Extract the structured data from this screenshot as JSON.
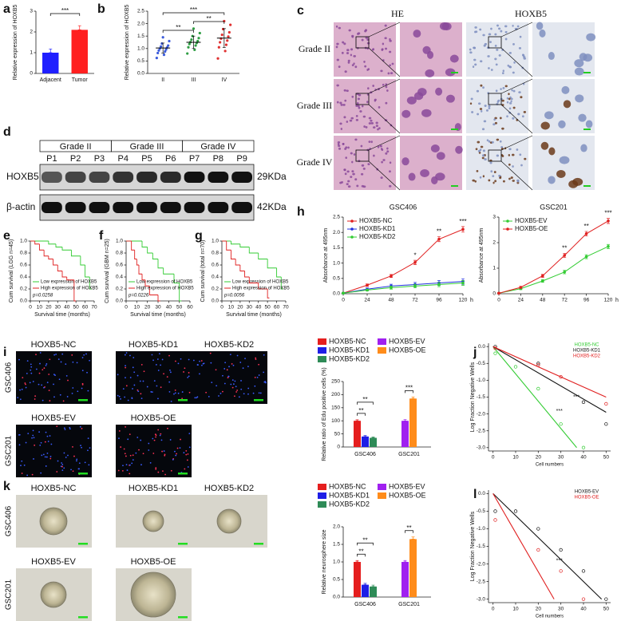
{
  "panel_letters": [
    "a",
    "b",
    "c",
    "d",
    "e",
    "f",
    "g",
    "h",
    "i",
    "j",
    "k",
    "l"
  ],
  "histology": {
    "columns": [
      "HE",
      "HOXB5"
    ],
    "rows": [
      "Grade II",
      "Grade III",
      "Grade IV"
    ]
  },
  "western": {
    "groups": [
      "Grade II",
      "Grade III",
      "Grade IV"
    ],
    "samples": [
      "P1",
      "P2",
      "P3",
      "P4",
      "P5",
      "P6",
      "P7",
      "P8",
      "P9"
    ],
    "bands": [
      {
        "name": "HOXB5",
        "size": "29KDa"
      },
      {
        "name": "β-actin",
        "size": "42KDa"
      }
    ]
  },
  "edu_images": {
    "labels": [
      "HOXB5-NC",
      "HOXB5-KD1",
      "HOXB5-KD2",
      "HOXB5-EV",
      "HOXB5-OE"
    ],
    "rows": [
      "GSC406",
      "GSC201"
    ]
  },
  "sphere_images": {
    "labels": [
      "HOXB5-NC",
      "HOXB5-KD1",
      "HOXB5-KD2",
      "HOXB5-EV",
      "HOXB5-OE"
    ],
    "rows": [
      "GSC406",
      "GSC201"
    ]
  },
  "chart_data": [
    {
      "type": "bar",
      "ylabel": "Relative expression of HOXB5",
      "categories": [
        "Adjacent",
        "Tumor"
      ],
      "values": [
        1.0,
        2.1
      ],
      "errors": [
        0.18,
        0.2
      ],
      "colors": [
        "#1f1fff",
        "#ff1f1f"
      ],
      "ylim": [
        0,
        3
      ],
      "yticks": [
        0,
        1,
        2,
        3
      ],
      "annotations": [
        "***"
      ]
    },
    {
      "type": "dot",
      "ylabel": "Relative expression of HOXB5",
      "categories": [
        "II",
        "III",
        "IV"
      ],
      "points": [
        [
          0.62,
          0.75,
          0.82,
          0.88,
          0.92,
          0.96,
          1.0,
          1.04,
          1.08,
          1.12,
          1.2,
          1.3,
          1.45
        ],
        [
          0.8,
          0.95,
          1.05,
          1.12,
          1.18,
          1.22,
          1.26,
          1.3,
          1.36,
          1.42,
          1.5,
          1.62,
          1.8
        ],
        [
          0.6,
          0.9,
          1.05,
          1.15,
          1.25,
          1.32,
          1.4,
          1.48,
          1.55,
          1.65,
          1.78,
          1.95,
          2.1
        ]
      ],
      "means": [
        1.02,
        1.25,
        1.42
      ],
      "sds": [
        0.2,
        0.25,
        0.38
      ],
      "colors": [
        "#3b5bdb",
        "#2f9e44",
        "#e03131"
      ],
      "ylim": [
        0,
        2.5
      ],
      "yticks": [
        {
          "value": 0,
          "label": "0.0"
        },
        0.5,
        {
          "value": 1,
          "label": "1.0"
        },
        1.5,
        {
          "value": 2,
          "label": "2.0"
        },
        2.5
      ],
      "annotations": [
        "**",
        "***",
        "**"
      ]
    },
    {
      "type": "km",
      "ylabel": "Cum survival (LGG n=45)",
      "xlabel": "Survival time (months)",
      "xlim": [
        0,
        70
      ],
      "xticks": [
        0,
        10,
        20,
        30,
        40,
        50,
        60,
        70
      ],
      "ylim": [
        0,
        1
      ],
      "yticks": [
        {
          "value": 0,
          "label": "0.0"
        },
        0.2,
        0.4,
        0.6,
        0.8,
        {
          "value": 1,
          "label": "1.0"
        }
      ],
      "series": [
        {
          "name": "Low expression of HOXB5",
          "color": "#33cc33",
          "x": [
            0,
            20,
            28,
            35,
            45,
            55,
            60,
            65
          ],
          "values": [
            1.0,
            0.95,
            0.9,
            0.85,
            0.75,
            0.6,
            0.4,
            0.2
          ]
        },
        {
          "name": "High expression of HOXB5",
          "color": "#e02020",
          "x": [
            0,
            5,
            10,
            15,
            20,
            25,
            30,
            35,
            40,
            48
          ],
          "values": [
            1.0,
            0.95,
            0.85,
            0.75,
            0.7,
            0.6,
            0.5,
            0.4,
            0.35,
            0.0
          ]
        }
      ],
      "p_label": "p=0.0258"
    },
    {
      "type": "km",
      "ylabel": "Cum survival (GBM n=25)",
      "xlabel": "Survival time (months)",
      "xlim": [
        0,
        60
      ],
      "xticks": [
        0,
        10,
        20,
        30,
        40,
        50,
        60
      ],
      "ylim": [
        0,
        1
      ],
      "yticks": [
        {
          "value": 0,
          "label": "0.0"
        },
        0.2,
        0.4,
        0.6,
        0.8,
        {
          "value": 1,
          "label": "1.0"
        }
      ],
      "series": [
        {
          "name": "Low expression of HOXB5",
          "color": "#33cc33",
          "x": [
            0,
            15,
            20,
            25,
            30,
            35,
            45,
            50
          ],
          "values": [
            1.0,
            0.9,
            0.8,
            0.7,
            0.55,
            0.45,
            0.3,
            0.0
          ]
        },
        {
          "name": "High expression of HOXB5",
          "color": "#e02020",
          "x": [
            0,
            5,
            8,
            10,
            12,
            15,
            18,
            22,
            30
          ],
          "values": [
            1.0,
            0.85,
            0.7,
            0.6,
            0.45,
            0.35,
            0.25,
            0.1,
            0.0
          ]
        }
      ],
      "p_label": "p=0.0226"
    },
    {
      "type": "km",
      "ylabel": "Cum survival (total n=70)",
      "xlabel": "Survival time (months)",
      "xlim": [
        0,
        70
      ],
      "xticks": [
        0,
        10,
        20,
        30,
        40,
        50,
        60,
        70
      ],
      "ylim": [
        0,
        1
      ],
      "yticks": [
        {
          "value": 0,
          "label": "0.0"
        },
        0.2,
        0.4,
        0.6,
        0.8,
        {
          "value": 1,
          "label": "1.0"
        }
      ],
      "series": [
        {
          "name": "Low expression of HOXB5",
          "color": "#33cc33",
          "x": [
            0,
            10,
            20,
            30,
            40,
            50,
            60,
            65
          ],
          "values": [
            1.0,
            0.95,
            0.9,
            0.8,
            0.7,
            0.55,
            0.4,
            0.2
          ]
        },
        {
          "name": "High expression of HOXB5",
          "color": "#e02020",
          "x": [
            0,
            5,
            10,
            15,
            20,
            25,
            30,
            40,
            50
          ],
          "values": [
            1.0,
            0.85,
            0.7,
            0.6,
            0.5,
            0.4,
            0.3,
            0.2,
            0.05
          ]
        }
      ],
      "p_label": "p=0.0056"
    },
    {
      "type": "line",
      "title": "GSC406",
      "ylabel": "Absorbance at 495nm",
      "xlabel": "h",
      "x": [
        0,
        24,
        48,
        72,
        96,
        120
      ],
      "xlim": [
        0,
        120
      ],
      "xticks": [
        0,
        24,
        48,
        72,
        96,
        120
      ],
      "ylim": [
        0,
        2.5
      ],
      "yticks": [
        {
          "value": 0,
          "label": "0.0"
        },
        0.5,
        {
          "value": 1,
          "label": "1.0"
        },
        1.5,
        {
          "value": 2,
          "label": "2.0"
        },
        2.5
      ],
      "series": [
        {
          "name": "HOXB5-NC",
          "color": "#e02020",
          "values": [
            0.02,
            0.28,
            0.58,
            1.02,
            1.78,
            2.1
          ],
          "errors": [
            0.02,
            0.04,
            0.05,
            0.07,
            0.08,
            0.09
          ]
        },
        {
          "name": "HOXB5-KD1",
          "color": "#2030e0",
          "values": [
            0.02,
            0.15,
            0.25,
            0.3,
            0.35,
            0.4
          ],
          "errors": [
            0.02,
            0.04,
            0.06,
            0.07,
            0.08,
            0.09
          ]
        },
        {
          "name": "HOXB5-KD2",
          "color": "#33cc33",
          "values": [
            0.02,
            0.12,
            0.2,
            0.25,
            0.3,
            0.35
          ],
          "errors": [
            0.02,
            0.03,
            0.05,
            0.06,
            0.07,
            0.08
          ]
        }
      ],
      "annotations": [
        "*",
        "**",
        "***"
      ]
    },
    {
      "type": "line",
      "title": "GSC201",
      "ylabel": "Absorbance at 495nm",
      "xlabel": "h",
      "x": [
        0,
        24,
        48,
        72,
        96,
        120
      ],
      "xlim": [
        0,
        120
      ],
      "xticks": [
        0,
        24,
        48,
        72,
        96,
        120
      ],
      "ylim": [
        0,
        3
      ],
      "yticks": [
        0,
        1,
        2,
        3
      ],
      "series": [
        {
          "name": "HOXB5-EV",
          "color": "#33cc33",
          "values": [
            0.02,
            0.2,
            0.5,
            0.85,
            1.45,
            1.85
          ],
          "errors": [
            0.02,
            0.04,
            0.05,
            0.07,
            0.08,
            0.08
          ]
        },
        {
          "name": "HOXB5-OE",
          "color": "#e02020",
          "values": [
            0.02,
            0.25,
            0.7,
            1.5,
            2.35,
            2.85
          ],
          "errors": [
            0.02,
            0.04,
            0.06,
            0.08,
            0.09,
            0.1
          ]
        }
      ],
      "annotations": [
        "**",
        "**",
        "***"
      ]
    },
    {
      "type": "groupbar",
      "ylabel": "Relative ratio of Edu positive cells (%)",
      "categories": [
        "GSC406",
        "GSC201"
      ],
      "ylim": [
        0,
        250
      ],
      "yticks": [
        0,
        50,
        100,
        150,
        200,
        250
      ],
      "series": [
        {
          "name": "HOXB5-NC",
          "color": "#e51e1e",
          "values": [
            100,
            null
          ],
          "errors": [
            4,
            null
          ]
        },
        {
          "name": "HOXB5-KD1",
          "color": "#1e1ee6",
          "values": [
            40,
            null
          ],
          "errors": [
            4,
            null
          ]
        },
        {
          "name": "HOXB5-KD2",
          "color": "#2e8b57",
          "values": [
            35,
            null
          ],
          "errors": [
            3,
            null
          ]
        },
        {
          "name": "HOXB5-EV",
          "color": "#a020f0",
          "values": [
            null,
            100
          ],
          "errors": [
            null,
            5
          ]
        },
        {
          "name": "HOXB5-OE",
          "color": "#ff8c1a",
          "values": [
            null,
            185
          ],
          "errors": [
            null,
            6
          ]
        }
      ],
      "annotations": [
        "**",
        "**",
        "***"
      ]
    },
    {
      "type": "elda",
      "xlabel": "Cell numbers",
      "ylabel": "Log Fraction Negative Wells",
      "xlim": [
        -2,
        52
      ],
      "xticks": [
        0,
        10,
        20,
        30,
        40,
        50
      ],
      "ylim": [
        -3.1,
        0.1
      ],
      "yticks": [
        {
          "value": 0,
          "label": "0.0"
        },
        -0.5,
        {
          "value": -1,
          "label": "-1.0"
        },
        -1.5,
        {
          "value": -2,
          "label": "-2.0"
        },
        -2.5,
        {
          "value": -3,
          "label": "-3.0"
        }
      ],
      "series": [
        {
          "name": "HOXB5-NC",
          "color": "#33cc33",
          "x": [
            1,
            10,
            20,
            30,
            40
          ],
          "values": [
            -0.2,
            -0.6,
            -1.25,
            -2.3,
            -3.0
          ],
          "fit_x": [
            0,
            37
          ],
          "fit_values": [
            0,
            -3.0
          ]
        },
        {
          "name": "HOXB5-KD1",
          "color": "#111111",
          "x": [
            1,
            20,
            40,
            50
          ],
          "values": [
            0,
            -0.5,
            -1.65,
            -2.3
          ],
          "fit_x": [
            0,
            50
          ],
          "fit_values": [
            0,
            -1.95
          ]
        },
        {
          "name": "HOXB5-KD2",
          "color": "#e02020",
          "x": [
            1,
            20,
            30,
            50
          ],
          "values": [
            -0.05,
            -0.55,
            -0.9,
            -1.7
          ],
          "fit_x": [
            0,
            50
          ],
          "fit_values": [
            0,
            -1.5
          ]
        }
      ],
      "annotations": [
        "***",
        "***"
      ]
    },
    {
      "type": "groupbar",
      "ylabel": "Relative neurosphere size",
      "categories": [
        "GSC406",
        "GSC201"
      ],
      "ylim": [
        0,
        2
      ],
      "yticks": [
        {
          "value": 0,
          "label": "0.0"
        },
        0.5,
        {
          "value": 1,
          "label": "1.0"
        },
        1.5,
        {
          "value": 2,
          "label": "2.0"
        }
      ],
      "series": [
        {
          "name": "HOXB5-NC",
          "color": "#e51e1e",
          "values": [
            1.0,
            null
          ],
          "errors": [
            0.04,
            null
          ]
        },
        {
          "name": "HOXB5-KD1",
          "color": "#1e1ee6",
          "values": [
            0.35,
            null
          ],
          "errors": [
            0.04,
            null
          ]
        },
        {
          "name": "HOXB5-KD2",
          "color": "#2e8b57",
          "values": [
            0.3,
            null
          ],
          "errors": [
            0.04,
            null
          ]
        },
        {
          "name": "HOXB5-EV",
          "color": "#a020f0",
          "values": [
            null,
            1.0
          ],
          "errors": [
            null,
            0.04
          ]
        },
        {
          "name": "HOXB5-OE",
          "color": "#ff8c1a",
          "values": [
            null,
            1.65
          ],
          "errors": [
            null,
            0.06
          ]
        }
      ],
      "annotations": [
        "**",
        "**",
        "**"
      ]
    },
    {
      "type": "elda",
      "xlabel": "Cell numbers",
      "ylabel": "Log Fraction Negative Wells",
      "xlim": [
        -2,
        52
      ],
      "xticks": [
        0,
        10,
        20,
        30,
        40,
        50
      ],
      "ylim": [
        -3.1,
        0.1
      ],
      "yticks": [
        {
          "value": 0,
          "label": "0.0"
        },
        -0.5,
        {
          "value": -1,
          "label": "-1.0"
        },
        -1.5,
        {
          "value": -2,
          "label": "-2.0"
        },
        -2.5,
        {
          "value": -3,
          "label": "-3.0"
        }
      ],
      "series": [
        {
          "name": "HOXB5-EV",
          "color": "#111111",
          "x": [
            1,
            10,
            20,
            30,
            40,
            50
          ],
          "values": [
            -0.5,
            -0.5,
            -1.0,
            -1.6,
            -2.2,
            -3.0
          ],
          "fit_x": [
            0,
            48
          ],
          "fit_values": [
            0,
            -3.0
          ]
        },
        {
          "name": "HOXB5-OE",
          "color": "#e02020",
          "x": [
            1,
            20,
            30,
            40
          ],
          "values": [
            -0.75,
            -1.6,
            -2.2,
            -3.0
          ],
          "fit_x": [
            0,
            27
          ],
          "fit_values": [
            0,
            -3.0
          ]
        }
      ],
      "annotations": [
        "***"
      ]
    }
  ]
}
